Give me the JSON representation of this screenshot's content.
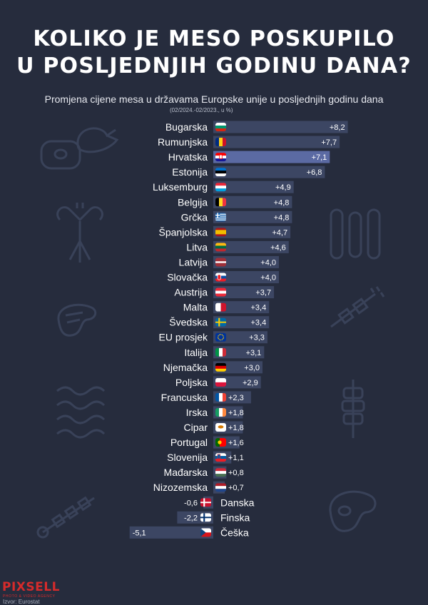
{
  "title": {
    "line1": "KOLIKO JE MESO POSKUPILO",
    "line2": "U POSLJEDNJIH GODINU DANA?"
  },
  "subtitle": "Promjena cijene mesa u državama Europske unije u posljednjih godinu dana",
  "subnote": "(02/2024.-02/2023., u %)",
  "source": "Izvor: Eurostat",
  "logo": {
    "text": "PIXSELL",
    "tagline": "PHOTO & VIDEO AGENCY"
  },
  "colors": {
    "background": "#262c3d",
    "bar": "#3c4663",
    "bar_highlight": "#5b6aa3",
    "icons": "#3a4257",
    "logo": "#d62b2b"
  },
  "icons": [
    "meat-chicken-icon",
    "sausage-fork-icon",
    "steak-icon",
    "bacon-icon",
    "skewer-icon",
    "sausages-icon",
    "grill-skewer-icon",
    "kebab-icon",
    "steak-plate-icon"
  ],
  "chart_data": {
    "type": "bar",
    "orientation": "horizontal",
    "title": "Promjena cijene mesa u državama Europske unije u posljednjih godinu dana",
    "highlight": "Hrvatska",
    "categories": [
      "Bugarska",
      "Rumunjska",
      "Hrvatska",
      "Estonija",
      "Luksemburg",
      "Belgija",
      "Grčka",
      "Španjolska",
      "Litva",
      "Latvija",
      "Slovačka",
      "Austrija",
      "Malta",
      "Švedska",
      "EU prosjek",
      "Italija",
      "Njemačka",
      "Poljska",
      "Francuska",
      "Irska",
      "Cipar",
      "Portugal",
      "Slovenija",
      "Mađarska",
      "Nizozemska",
      "Danska",
      "Finska",
      "Češka"
    ],
    "labels": [
      "+8,2",
      "+7,7",
      "+7,1",
      "+6,8",
      "+4,9",
      "+4,8",
      "+4,8",
      "+4,7",
      "+4,6",
      "+4,0",
      "+4,0",
      "+3,7",
      "+3,4",
      "+3,4",
      "+3,3",
      "+3,1",
      "+3,0",
      "+2,9",
      "+2,3",
      "+1,8",
      "+1,8",
      "+1,6",
      "+1,1",
      "+0,8",
      "+0,7",
      "-0,6",
      "-2,2",
      "-5,1"
    ],
    "values": [
      8.2,
      7.7,
      7.1,
      6.8,
      4.9,
      4.8,
      4.8,
      4.7,
      4.6,
      4.0,
      4.0,
      3.7,
      3.4,
      3.4,
      3.3,
      3.1,
      3.0,
      2.9,
      2.3,
      1.8,
      1.8,
      1.6,
      1.1,
      0.8,
      0.7,
      -0.6,
      -2.2,
      -5.1
    ],
    "flags": [
      "bg",
      "ro",
      "hr",
      "ee",
      "lu",
      "be",
      "gr",
      "es",
      "lt",
      "lv",
      "sk",
      "at",
      "mt",
      "se",
      "eu",
      "it",
      "de",
      "pl",
      "fr",
      "ie",
      "cy",
      "pt",
      "si",
      "hu",
      "nl",
      "dk",
      "fi",
      "cz"
    ]
  }
}
